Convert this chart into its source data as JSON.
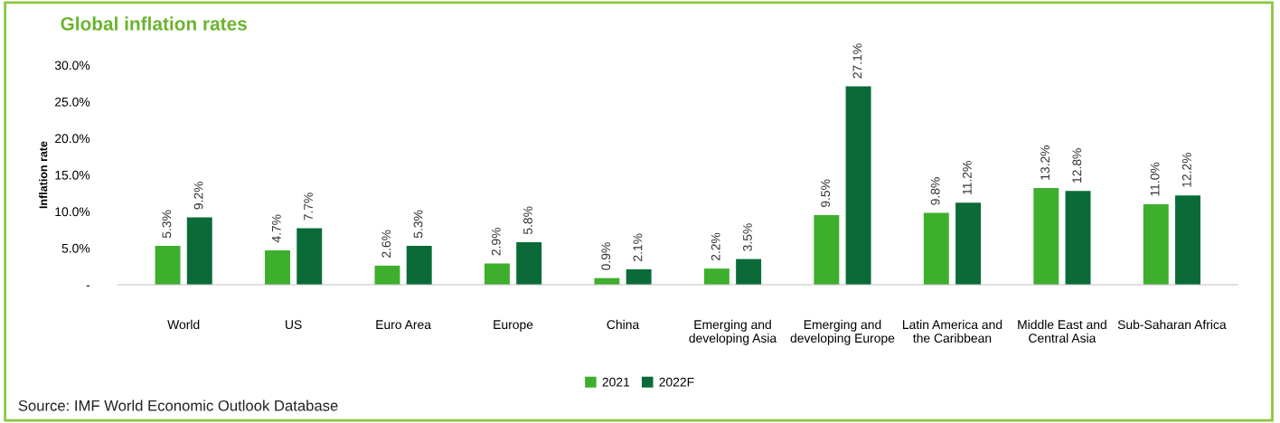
{
  "chart_data": {
    "type": "bar",
    "title": "Global inflation rates",
    "ylabel": "Inflation rate",
    "categories": [
      "World",
      "US",
      "Euro Area",
      "Europe",
      "China",
      "Emerging and\ndeveloping Asia",
      "Emerging and\ndeveloping Europe",
      "Latin America and\nthe Caribbean",
      "Middle East and\nCentral Asia",
      "Sub-Saharan Africa"
    ],
    "series": [
      {
        "name": "2021",
        "color": "#3daf2c",
        "values": [
          5.3,
          4.7,
          2.6,
          2.9,
          0.9,
          2.2,
          9.5,
          9.8,
          13.2,
          11.0
        ],
        "value_labels": [
          "5.3%",
          "4.7%",
          "2.6%",
          "2.9%",
          "0.9%",
          "2.2%",
          "9.5%",
          "9.8%",
          "13.2%",
          "11.0%"
        ]
      },
      {
        "name": "2022F",
        "color": "#0a6b38",
        "values": [
          9.2,
          7.7,
          5.3,
          5.8,
          2.1,
          3.5,
          27.1,
          11.2,
          12.8,
          12.2
        ],
        "value_labels": [
          "9.2%",
          "7.7%",
          "5.3%",
          "5.8%",
          "2.1%",
          "3.5%",
          "27.1%",
          "11.2%",
          "12.8%",
          "12.2%"
        ]
      }
    ],
    "ylim": [
      0,
      30
    ],
    "yticks": [
      {
        "value": 0,
        "label": "-"
      },
      {
        "value": 5,
        "label": "5.0%"
      },
      {
        "value": 10,
        "label": "10.0%"
      },
      {
        "value": 15,
        "label": "15.0%"
      },
      {
        "value": 20,
        "label": "20.0%"
      },
      {
        "value": 25,
        "label": "25.0%"
      },
      {
        "value": 30,
        "label": "30.0%"
      }
    ],
    "grid": false,
    "legend": "bottom",
    "annotations": [
      "Source: IMF World Economic Outlook Database"
    ]
  }
}
